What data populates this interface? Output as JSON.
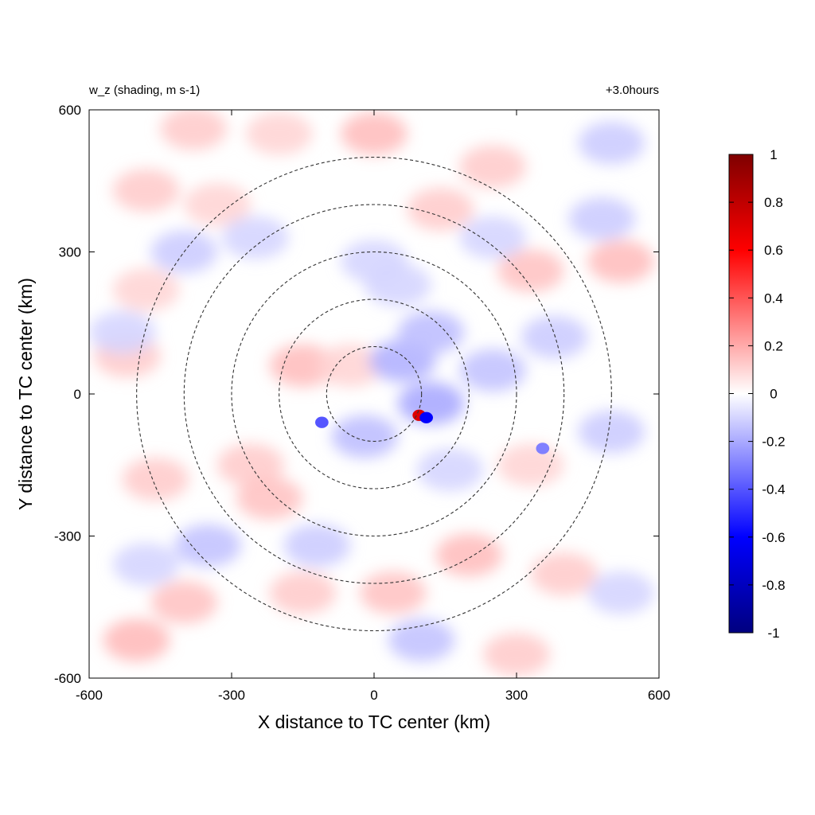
{
  "chart_data": {
    "type": "heatmap",
    "title_left": "w_z (shading, m s-1)",
    "title_right": "+3.0hours",
    "xlabel": "X distance to TC center (km)",
    "ylabel": "Y distance to TC center (km)",
    "xlim": [
      -600,
      600
    ],
    "ylim": [
      -600,
      600
    ],
    "xticks": [
      {
        "value": -600,
        "label": "-600"
      },
      {
        "value": -300,
        "label": "-300"
      },
      {
        "value": 0,
        "label": "0"
      },
      {
        "value": 300,
        "label": "300"
      },
      {
        "value": 600,
        "label": "600"
      }
    ],
    "yticks": [
      {
        "value": -600,
        "label": "-600"
      },
      {
        "value": -300,
        "label": "-300"
      },
      {
        "value": 0,
        "label": "0"
      },
      {
        "value": 300,
        "label": "300"
      },
      {
        "value": 600,
        "label": "600"
      }
    ],
    "reference_circles_km": [
      100,
      200,
      300,
      400,
      500
    ],
    "colorbar": {
      "min": -1,
      "max": 1,
      "ticks": [
        {
          "value": 1,
          "label": "1"
        },
        {
          "value": 0.8,
          "label": "0.8"
        },
        {
          "value": 0.6,
          "label": "0.6"
        },
        {
          "value": 0.4,
          "label": "0.4"
        },
        {
          "value": 0.2,
          "label": "0.2"
        },
        {
          "value": 0,
          "label": "0"
        },
        {
          "value": -0.2,
          "label": "-0.2"
        },
        {
          "value": -0.4,
          "label": "-0.4"
        },
        {
          "value": -0.6,
          "label": "-0.6"
        },
        {
          "value": -0.8,
          "label": "-0.8"
        },
        {
          "value": -1,
          "label": "-1"
        }
      ],
      "colors": [
        {
          "value": -1,
          "color": "#00007f"
        },
        {
          "value": -0.6,
          "color": "#0000ff"
        },
        {
          "value": 0,
          "color": "#ffffff"
        },
        {
          "value": 0.6,
          "color": "#ff0000"
        },
        {
          "value": 1,
          "color": "#7f0000"
        }
      ]
    },
    "features": [
      {
        "x": 0,
        "y": 550,
        "w": 0.15
      },
      {
        "x": -200,
        "y": 550,
        "w": 0.1
      },
      {
        "x": 250,
        "y": 480,
        "w": 0.12
      },
      {
        "x": -480,
        "y": 430,
        "w": 0.12
      },
      {
        "x": -330,
        "y": 400,
        "w": 0.1
      },
      {
        "x": 140,
        "y": 390,
        "w": 0.12
      },
      {
        "x": 330,
        "y": 260,
        "w": 0.14
      },
      {
        "x": 520,
        "y": 280,
        "w": 0.15
      },
      {
        "x": -480,
        "y": 220,
        "w": 0.1
      },
      {
        "x": -520,
        "y": 80,
        "w": 0.12
      },
      {
        "x": -150,
        "y": 60,
        "w": 0.15
      },
      {
        "x": -50,
        "y": 60,
        "w": 0.1
      },
      {
        "x": -260,
        "y": -150,
        "w": 0.12
      },
      {
        "x": -220,
        "y": -220,
        "w": 0.14
      },
      {
        "x": -460,
        "y": -180,
        "w": 0.12
      },
      {
        "x": 330,
        "y": -150,
        "w": 0.1
      },
      {
        "x": 200,
        "y": -340,
        "w": 0.15
      },
      {
        "x": 400,
        "y": -380,
        "w": 0.12
      },
      {
        "x": 40,
        "y": -420,
        "w": 0.14
      },
      {
        "x": -150,
        "y": -420,
        "w": 0.12
      },
      {
        "x": -400,
        "y": -440,
        "w": 0.14
      },
      {
        "x": -500,
        "y": -520,
        "w": 0.16
      },
      {
        "x": 300,
        "y": -550,
        "w": 0.12
      },
      {
        "x": -380,
        "y": 560,
        "w": 0.12
      },
      {
        "x": -400,
        "y": 300,
        "w": -0.12
      },
      {
        "x": -250,
        "y": 330,
        "w": -0.1
      },
      {
        "x": 50,
        "y": 230,
        "w": -0.1
      },
      {
        "x": 250,
        "y": 330,
        "w": -0.1
      },
      {
        "x": 480,
        "y": 370,
        "w": -0.12
      },
      {
        "x": 500,
        "y": 530,
        "w": -0.12
      },
      {
        "x": 60,
        "y": 70,
        "w": -0.18
      },
      {
        "x": 120,
        "y": -20,
        "w": -0.2
      },
      {
        "x": -20,
        "y": -90,
        "w": -0.15
      },
      {
        "x": 250,
        "y": 50,
        "w": -0.14
      },
      {
        "x": 160,
        "y": -160,
        "w": -0.1
      },
      {
        "x": 120,
        "y": 130,
        "w": -0.15
      },
      {
        "x": -350,
        "y": -320,
        "w": -0.14
      },
      {
        "x": -120,
        "y": -320,
        "w": -0.12
      },
      {
        "x": 500,
        "y": -80,
        "w": -0.12
      },
      {
        "x": 520,
        "y": -420,
        "w": -0.1
      },
      {
        "x": -530,
        "y": 130,
        "w": -0.1
      },
      {
        "x": 100,
        "y": -520,
        "w": -0.14
      },
      {
        "x": 380,
        "y": 120,
        "w": -0.12
      },
      {
        "x": 0,
        "y": 280,
        "w": -0.1
      },
      {
        "x": -480,
        "y": -360,
        "w": -0.1
      },
      {
        "x": 95,
        "y": -45,
        "w": 0.7
      },
      {
        "x": 110,
        "y": -50,
        "w": -0.6
      },
      {
        "x": -110,
        "y": -60,
        "w": -0.4
      },
      {
        "x": 355,
        "y": -115,
        "w": -0.3
      }
    ]
  }
}
